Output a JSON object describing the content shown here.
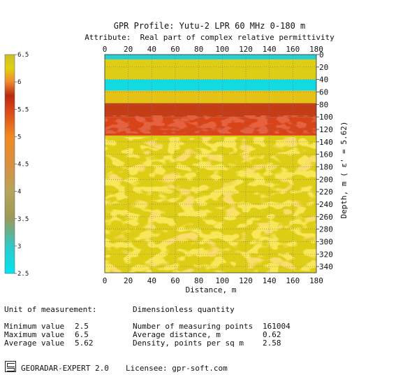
{
  "chart_data": {
    "type": "heatmap",
    "title": "GPR Profile: Yutu-2 LPR 60 MHz 0-180 m",
    "subtitle": "Attribute:  Real part of complex relative permittivity",
    "xlabel": "Distance, m",
    "ylabel": "Depth, m  ( ε' = 5.62)",
    "xlim": [
      0,
      180
    ],
    "ylim": [
      0,
      350
    ],
    "x_ticks": [
      "0",
      "20",
      "40",
      "60",
      "80",
      "100",
      "120",
      "140",
      "160",
      "180"
    ],
    "y_ticks": [
      "0",
      "20",
      "40",
      "60",
      "80",
      "100",
      "120",
      "140",
      "160",
      "180",
      "200",
      "220",
      "240",
      "260",
      "280",
      "300",
      "320",
      "340"
    ],
    "y_inverted": true,
    "grid": true,
    "colorbar": {
      "range": [
        2.5,
        6.5
      ],
      "ticks": [
        "6.5",
        "6",
        "5.5",
        "5",
        "4.5",
        "4",
        "3.5",
        "3",
        "2.5"
      ],
      "stops": [
        {
          "value": 2.5,
          "color": "#00e5f0"
        },
        {
          "value": 3.0,
          "color": "#30c8c8"
        },
        {
          "value": 3.5,
          "color": "#9a9a58"
        },
        {
          "value": 4.0,
          "color": "#b8a45a"
        },
        {
          "value": 4.5,
          "color": "#d89040"
        },
        {
          "value": 5.0,
          "color": "#ef8a22"
        },
        {
          "value": 5.5,
          "color": "#d84418"
        },
        {
          "value": 5.75,
          "color": "#b82a10"
        },
        {
          "value": 6.0,
          "color": "#ef8a30"
        },
        {
          "value": 6.25,
          "color": "#e2d010"
        },
        {
          "value": 6.5,
          "color": "#c9c02a"
        }
      ]
    },
    "layers": [
      {
        "depth_from": 0,
        "depth_to": 8,
        "value": 2.9
      },
      {
        "depth_from": 8,
        "depth_to": 40,
        "value": 6.3
      },
      {
        "depth_from": 40,
        "depth_to": 58,
        "value": 2.7
      },
      {
        "depth_from": 58,
        "depth_to": 78,
        "value": 6.2
      },
      {
        "depth_from": 78,
        "depth_to": 100,
        "value": 5.8
      },
      {
        "depth_from": 100,
        "depth_to": 130,
        "value": 5.5
      },
      {
        "depth_from": 130,
        "depth_to": 350,
        "value": 6.3
      }
    ]
  },
  "stats": {
    "unit_label": "Unit of measurement:",
    "unit_value": "Dimensionless quantity",
    "rows": [
      {
        "label": "Minimum value",
        "value": "2.5",
        "label2": "Number of measuring points",
        "value2": "161004"
      },
      {
        "label": "Maximum value",
        "value": "6.5",
        "label2": "Average distance, m",
        "value2": "0.62"
      },
      {
        "label": "Average value",
        "value": "5.62",
        "label2": "Density, points per sq m",
        "value2": "2.58"
      }
    ]
  },
  "footer": {
    "app": "GEORADAR-EXPERT 2.0",
    "licensee": "Licensee: gpr-soft.com"
  }
}
